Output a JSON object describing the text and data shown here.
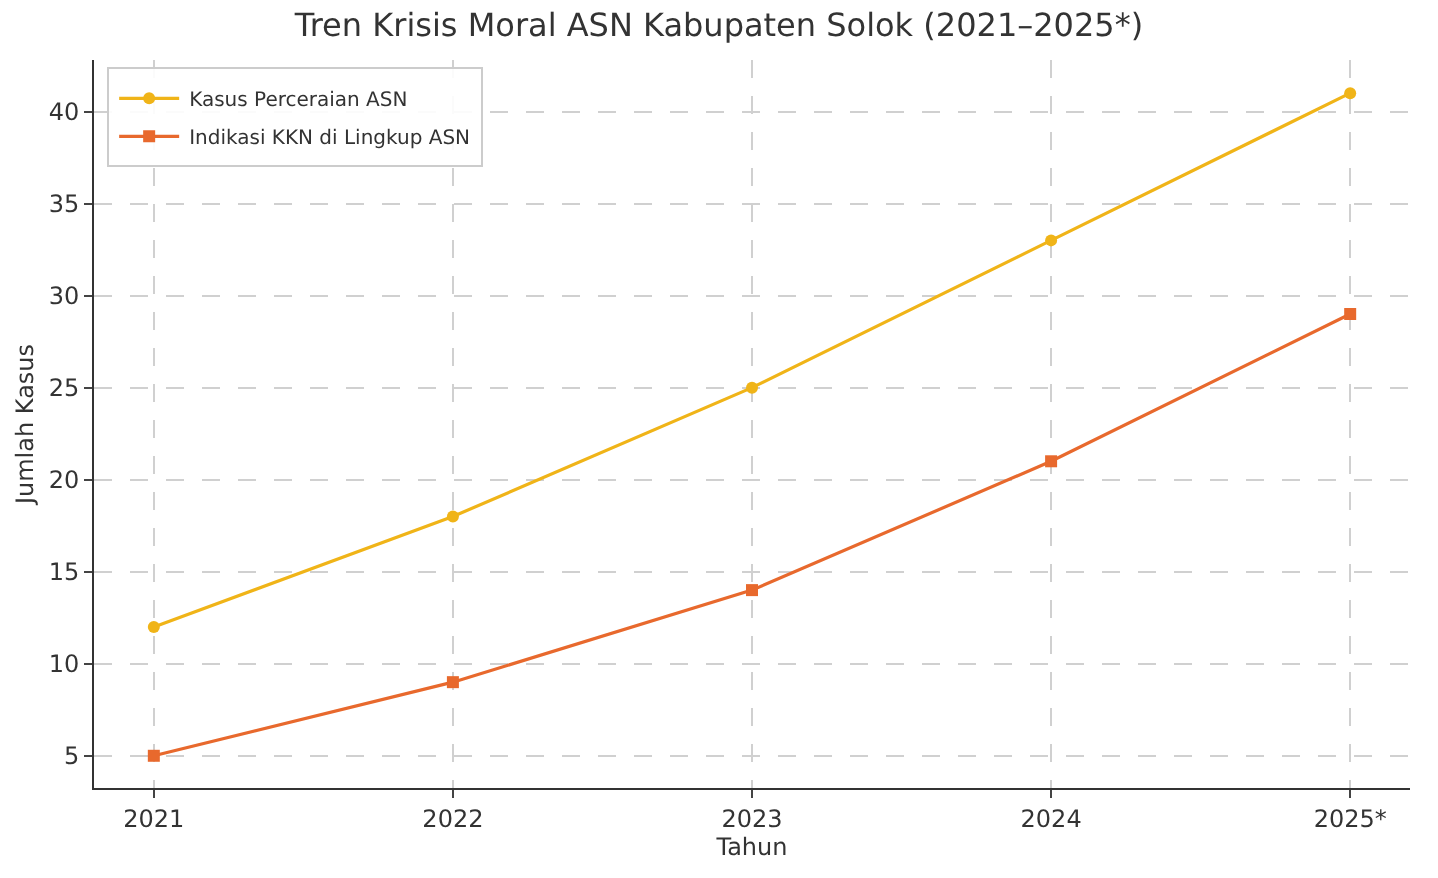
{
  "chart_data": {
    "type": "line",
    "title": "Tren Krisis Moral ASN Kabupaten Solok (2021–2025*)",
    "xlabel": "Tahun",
    "ylabel": "Jumlah Kasus",
    "categories": [
      "2021",
      "2022",
      "2023",
      "2024",
      "2025*"
    ],
    "series": [
      {
        "name": "Kasus Perceraian ASN",
        "color": "#f0b418",
        "marker": "circle",
        "values": [
          12,
          18,
          25,
          33,
          41
        ]
      },
      {
        "name": "Indikasi KKN di Lingkup ASN",
        "color": "#e8692d",
        "marker": "square",
        "values": [
          5,
          9,
          14,
          21,
          29
        ]
      }
    ],
    "ylim": [
      3.25,
      42.8
    ],
    "yticks": [
      5,
      10,
      15,
      20,
      25,
      30,
      35,
      40
    ],
    "grid": true,
    "legend": "top left",
    "line_style": "solid"
  }
}
